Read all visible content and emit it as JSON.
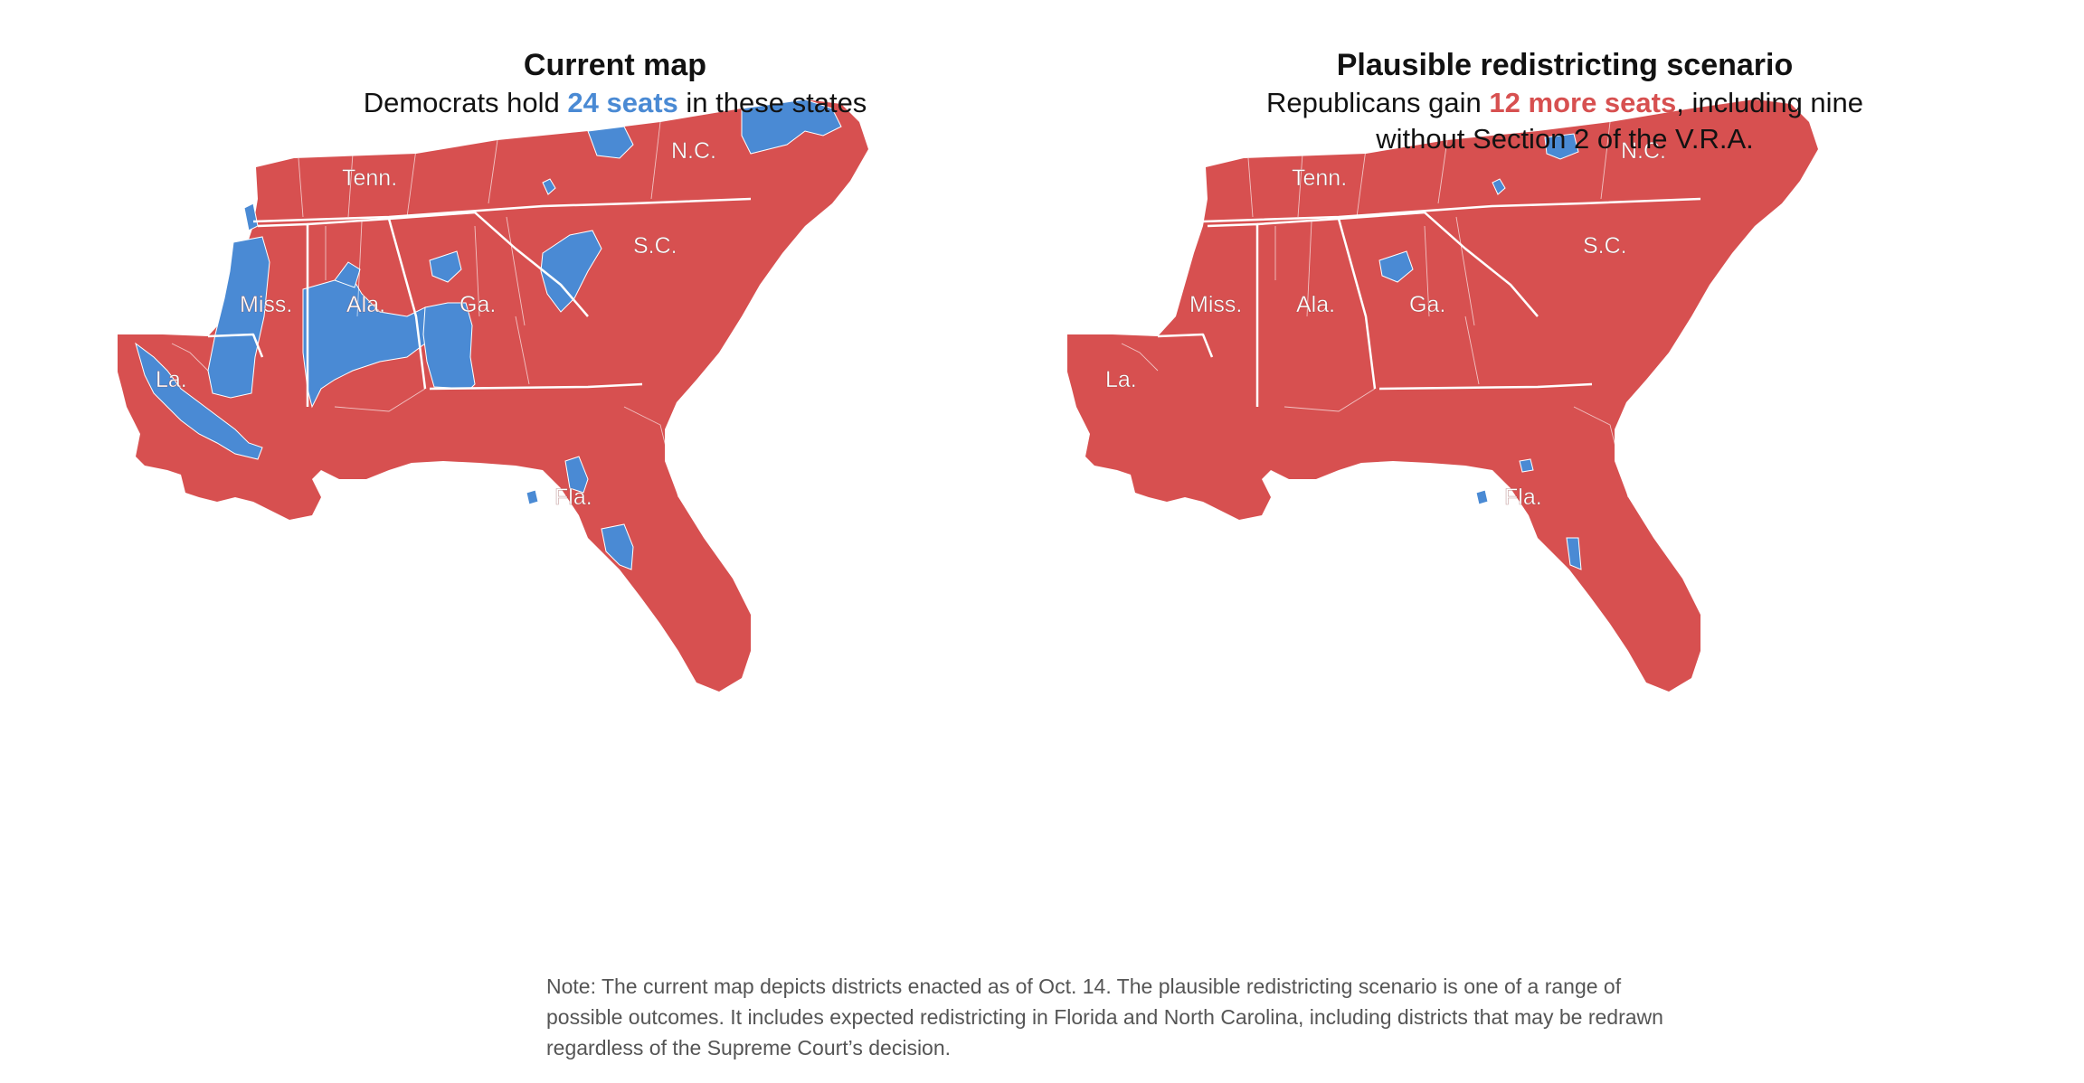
{
  "colors": {
    "republican": "#d75050",
    "democrat": "#4a8ad4",
    "border": "#ffffff"
  },
  "panels": [
    {
      "title": "Current map",
      "subtitle_pre": "Democrats hold ",
      "subtitle_hl": "24 seats",
      "subtitle_post": " in these states",
      "highlight_color": "democrat",
      "state_labels": {
        "tenn": "Tenn.",
        "nc": "N.C.",
        "sc": "S.C.",
        "miss": "Miss.",
        "ala": "Ala.",
        "ga": "Ga.",
        "la": "La.",
        "fla": "Fla."
      }
    },
    {
      "title": "Plausible redistricting scenario",
      "subtitle_pre": "Republicans gain ",
      "subtitle_hl": "12 more seats",
      "subtitle_post": ", including nine without Section 2 of the V.R.A.",
      "highlight_color": "republican",
      "state_labels": {
        "tenn": "Tenn.",
        "nc": "N.C.",
        "sc": "S.C.",
        "miss": "Miss.",
        "ala": "Ala.",
        "ga": "Ga.",
        "la": "La.",
        "fla": "Fla."
      }
    }
  ],
  "note": "Note: The current map depicts districts enacted as of Oct. 14. The plausible redistricting scenario is one of a range of possible outcomes. It includes expected redistricting in Florida and North Carolina, including districts that may be redrawn regardless of the Supreme Court’s decision."
}
